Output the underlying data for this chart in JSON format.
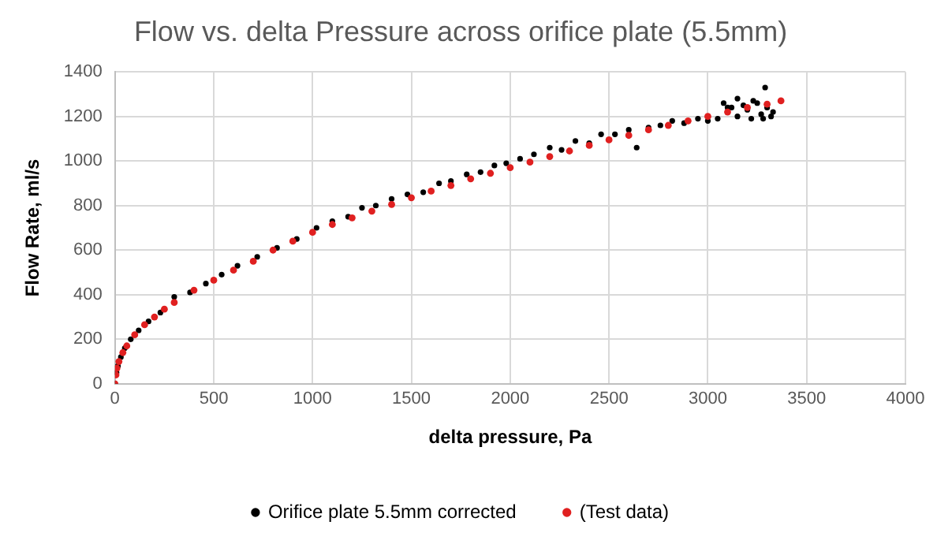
{
  "chart_data": {
    "type": "scatter",
    "title": "Flow vs. delta Pressure across orifice plate (5.5mm)",
    "xlabel": "delta pressure, Pa",
    "ylabel": "Flow Rate, ml/s",
    "xlim": [
      0,
      4000
    ],
    "xticks": [
      0,
      500,
      1000,
      1500,
      2000,
      2500,
      3000,
      3500,
      4000
    ],
    "ylim": [
      0,
      1400
    ],
    "yticks": [
      0,
      200,
      400,
      600,
      800,
      1000,
      1200,
      1400
    ],
    "grid": true,
    "legend": "bottom",
    "marker": "circle",
    "series": [
      {
        "name": "Orifice plate 5.5mm corrected",
        "color": "#000000",
        "x": [
          0,
          8,
          15,
          30,
          50,
          80,
          120,
          170,
          230,
          300,
          380,
          460,
          540,
          620,
          720,
          820,
          920,
          1020,
          1100,
          1180,
          1250,
          1320,
          1400,
          1480,
          1560,
          1640,
          1700,
          1780,
          1850,
          1920,
          1980,
          2050,
          2120,
          2200,
          2260,
          2330,
          2400,
          2460,
          2530,
          2600,
          2640,
          2700,
          2760,
          2820,
          2880,
          2950,
          3000,
          3050,
          3080,
          3100,
          3120,
          3150,
          3180,
          3200,
          3220,
          3250,
          3270,
          3290,
          3300,
          3320,
          3150,
          3230,
          3280,
          3330
        ],
        "values": [
          0,
          50,
          80,
          120,
          160,
          200,
          240,
          280,
          320,
          390,
          410,
          450,
          490,
          530,
          570,
          610,
          650,
          700,
          730,
          750,
          790,
          800,
          830,
          850,
          860,
          900,
          910,
          940,
          950,
          980,
          990,
          1010,
          1030,
          1060,
          1050,
          1090,
          1080,
          1120,
          1120,
          1140,
          1060,
          1150,
          1160,
          1180,
          1170,
          1190,
          1180,
          1190,
          1260,
          1240,
          1240,
          1200,
          1250,
          1230,
          1190,
          1260,
          1210,
          1330,
          1240,
          1200,
          1280,
          1270,
          1190,
          1220
        ]
      },
      {
        "name": "(Test data)",
        "color": "#e02020",
        "x": [
          0,
          5,
          10,
          20,
          40,
          60,
          100,
          150,
          200,
          250,
          300,
          400,
          500,
          600,
          700,
          800,
          900,
          1000,
          1100,
          1200,
          1300,
          1400,
          1500,
          1600,
          1700,
          1800,
          1900,
          2000,
          2100,
          2200,
          2300,
          2400,
          2500,
          2600,
          2700,
          2800,
          2900,
          3000,
          3100,
          3200,
          3300,
          3370
        ],
        "values": [
          0,
          40,
          70,
          100,
          140,
          170,
          220,
          265,
          300,
          335,
          365,
          420,
          465,
          510,
          550,
          600,
          640,
          680,
          715,
          745,
          775,
          805,
          835,
          865,
          890,
          920,
          945,
          970,
          995,
          1020,
          1045,
          1070,
          1095,
          1115,
          1140,
          1160,
          1180,
          1200,
          1220,
          1240,
          1255,
          1270
        ]
      }
    ]
  }
}
